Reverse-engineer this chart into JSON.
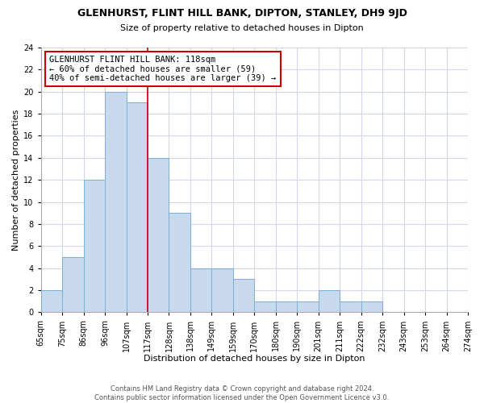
{
  "title": "GLENHURST, FLINT HILL BANK, DIPTON, STANLEY, DH9 9JD",
  "subtitle": "Size of property relative to detached houses in Dipton",
  "xlabel": "Distribution of detached houses by size in Dipton",
  "ylabel": "Number of detached properties",
  "footer_line1": "Contains HM Land Registry data © Crown copyright and database right 2024.",
  "footer_line2": "Contains public sector information licensed under the Open Government Licence v3.0.",
  "bar_color": "#c8d9ee",
  "bar_edge_color": "#7bafd4",
  "annotation_line_color": "#cc0000",
  "annotation_box_edge_color": "#cc0000",
  "annotation_text_line1": "GLENHURST FLINT HILL BANK: 118sqm",
  "annotation_text_line2": "← 60% of detached houses are smaller (59)",
  "annotation_text_line3": "40% of semi-detached houses are larger (39) →",
  "bins": [
    "65sqm",
    "75sqm",
    "86sqm",
    "96sqm",
    "107sqm",
    "117sqm",
    "128sqm",
    "138sqm",
    "149sqm",
    "159sqm",
    "170sqm",
    "180sqm",
    "190sqm",
    "201sqm",
    "211sqm",
    "222sqm",
    "232sqm",
    "243sqm",
    "253sqm",
    "264sqm",
    "274sqm"
  ],
  "counts": [
    2,
    5,
    12,
    20,
    19,
    14,
    9,
    4,
    4,
    3,
    1,
    1,
    1,
    2,
    1,
    1,
    0,
    0,
    0,
    0
  ],
  "marker_bin_index": 5,
  "ylim": [
    0,
    24
  ],
  "yticks": [
    0,
    2,
    4,
    6,
    8,
    10,
    12,
    14,
    16,
    18,
    20,
    22,
    24
  ],
  "grid_color": "#d0d8e8",
  "title_fontsize": 9,
  "subtitle_fontsize": 8,
  "ylabel_fontsize": 8,
  "xlabel_fontsize": 8,
  "tick_fontsize": 7,
  "footer_fontsize": 6
}
